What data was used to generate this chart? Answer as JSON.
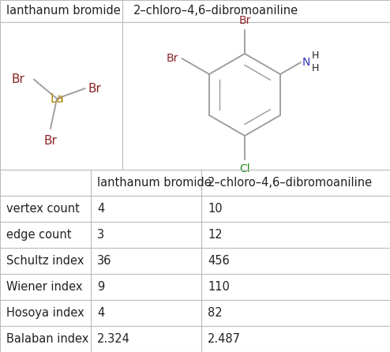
{
  "col1_header": "lanthanum bromide",
  "col2_header": "2–chloro–4,6–dibromoaniline",
  "rows": [
    {
      "label": "vertex count",
      "val1": "4",
      "val2": "10"
    },
    {
      "label": "edge count",
      "val1": "3",
      "val2": "12"
    },
    {
      "label": "Schultz index",
      "val1": "36",
      "val2": "456"
    },
    {
      "label": "Wiener index",
      "val1": "9",
      "val2": "110"
    },
    {
      "label": "Hosoya index",
      "val1": "4",
      "val2": "82"
    },
    {
      "label": "Balaban index",
      "val1": "2.324",
      "val2": "2.487"
    }
  ],
  "bg_color": "#ffffff",
  "border_color": "#bbbbbb",
  "text_color": "#222222",
  "header_fontsize": 10.5,
  "cell_fontsize": 10.5,
  "br_color": "#8B2222",
  "la_color": "#b8860b",
  "cl_color": "#228B22",
  "n_color": "#3333bb",
  "bond_color": "#999999",
  "ring_color": "#999999"
}
